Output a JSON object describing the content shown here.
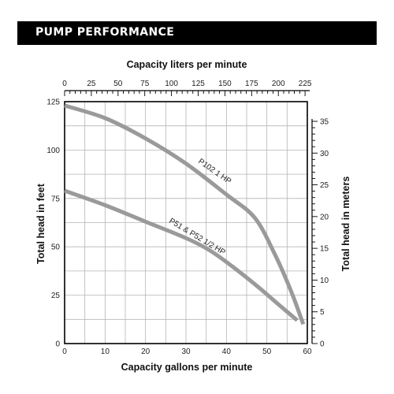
{
  "header": {
    "title": "PUMP PERFORMANCE"
  },
  "chart_data": {
    "type": "line",
    "top_axis": {
      "label": "Capacity liters per minute",
      "ticks": [
        0,
        25,
        50,
        75,
        100,
        125,
        150,
        175,
        200,
        225
      ]
    },
    "bottom_axis": {
      "label": "Capacity gallons per minute",
      "ticks": [
        0,
        10,
        20,
        30,
        40,
        50,
        60
      ],
      "xlim": [
        0,
        60
      ]
    },
    "left_axis": {
      "label": "Total head in feet",
      "ticks": [
        0,
        25,
        50,
        75,
        100,
        125
      ],
      "ylim": [
        0,
        125
      ]
    },
    "right_axis": {
      "label": "Total head in meters",
      "ticks": [
        0,
        5,
        10,
        15,
        20,
        25,
        30,
        35
      ]
    },
    "grid": true,
    "line_color": "#9a9a9a",
    "series": [
      {
        "name": "P102  1 HP",
        "x": [
          0,
          10,
          20,
          30,
          40,
          47,
          52,
          56,
          59
        ],
        "y": [
          123,
          116.5,
          106,
          93,
          77,
          65,
          46,
          27,
          10
        ]
      },
      {
        "name": "P51 & P52  1/2 HP",
        "x": [
          0,
          10,
          20,
          30,
          36,
          42,
          48,
          53,
          57.5
        ],
        "y": [
          79,
          71.5,
          63,
          54.5,
          48,
          39,
          29,
          20,
          12
        ]
      }
    ]
  }
}
